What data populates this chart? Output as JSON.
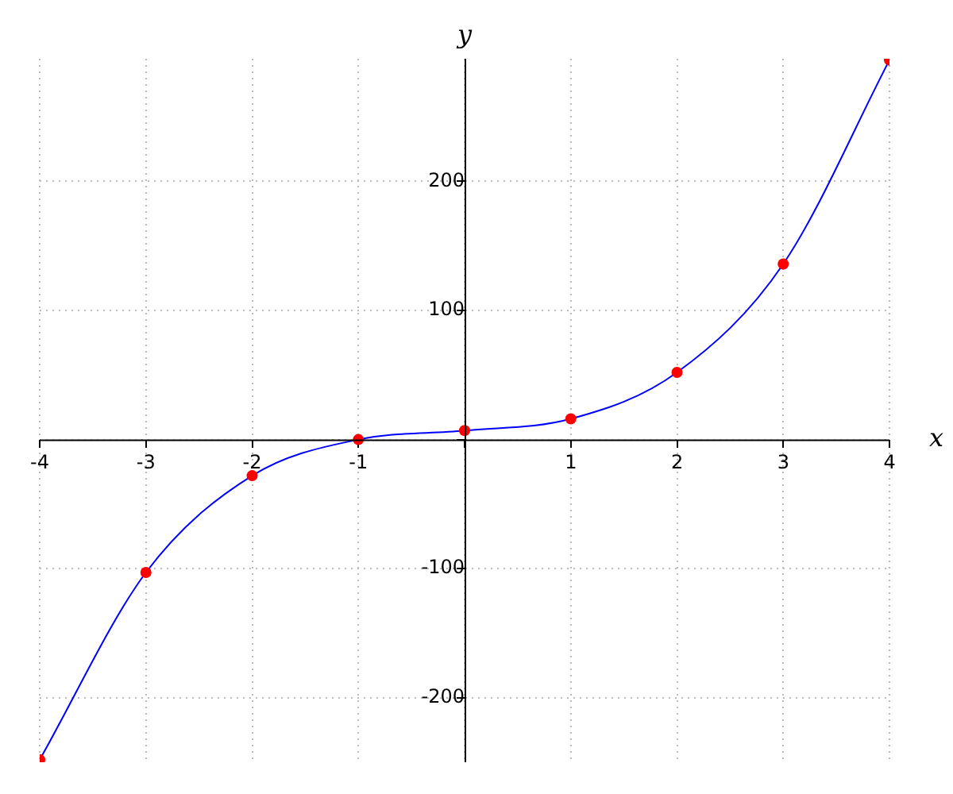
{
  "chart_data": {
    "type": "line",
    "xlabel": "x",
    "ylabel": "y",
    "x": [
      -4,
      -3,
      -2,
      -1,
      0,
      1,
      2,
      3,
      4
    ],
    "series": [
      {
        "color": "#0000ff",
        "marker": "none",
        "values": [
          -248,
          -103,
          -28,
          0,
          7,
          16,
          52,
          136,
          294
        ]
      },
      {
        "type": "scatter",
        "color": "#ff0000",
        "marker": "circle",
        "values": [
          -248,
          -103,
          -28,
          0,
          7,
          16,
          52,
          136,
          294
        ]
      }
    ],
    "xlim": [
      -4,
      4
    ],
    "ylim": [
      -250,
      295
    ],
    "xticks": [
      -4,
      -3,
      -2,
      -1,
      {
        "value": 0,
        "label": null
      },
      1,
      2,
      3,
      4
    ],
    "yticks": [
      -200,
      -100,
      {
        "value": 0,
        "label": null
      },
      100,
      200
    ],
    "grid": true,
    "legend": false
  }
}
